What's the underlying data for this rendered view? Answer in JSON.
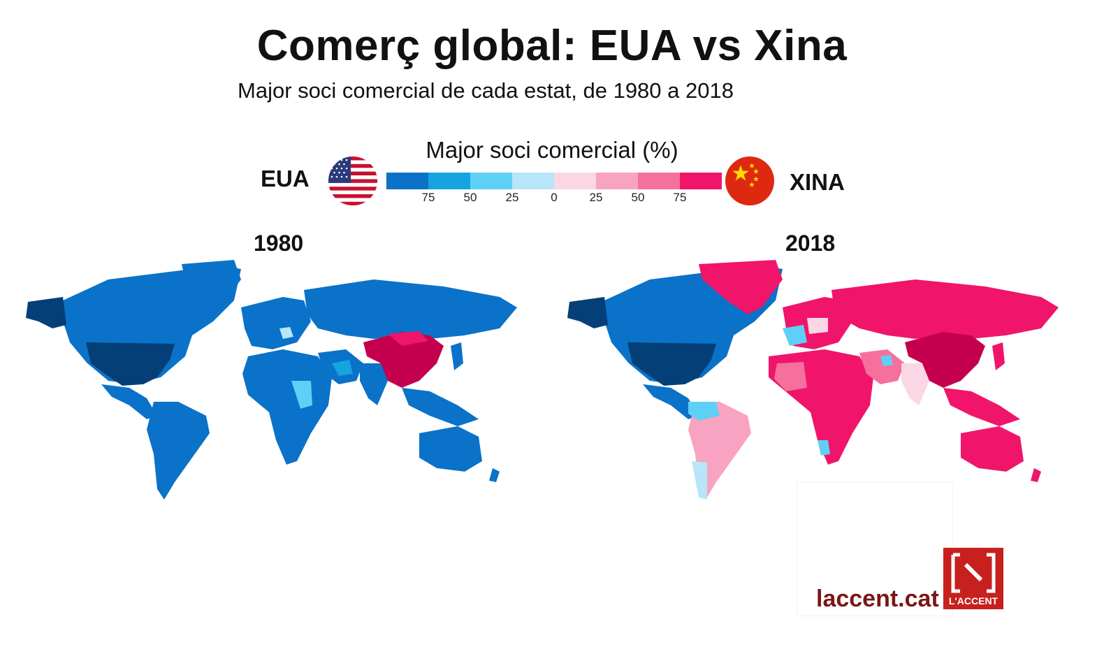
{
  "title": "Comerç global: EUA vs Xina",
  "subtitle": "Major soci comercial de cada estat, de 1980 a 2018",
  "legend": {
    "title": "Major soci comercial (%)",
    "left_label": "EUA",
    "right_label": "XINA",
    "ticks": [
      "75",
      "50",
      "25",
      "0",
      "25",
      "50",
      "75"
    ],
    "colors": [
      "#0a72c8",
      "#14a4e0",
      "#5fd0f5",
      "#b7e6fa",
      "#fbd6e4",
      "#f8a3c1",
      "#f5709c",
      "#f0156a"
    ]
  },
  "maps": [
    {
      "year": "1980"
    },
    {
      "year": "2018"
    }
  ],
  "brand": {
    "site": "laccent.cat",
    "logo_text": "L'ACCENT"
  },
  "colors": {
    "usa_dark": "#043f78",
    "usa": "#0a72c8",
    "usa_light": "#5fd0f5",
    "china_dark": "#c4004e",
    "china": "#f0156a",
    "china_light": "#f8a3c1"
  },
  "icons": [
    "usa-flag-icon",
    "china-flag-icon",
    "laccent-logo-icon"
  ]
}
